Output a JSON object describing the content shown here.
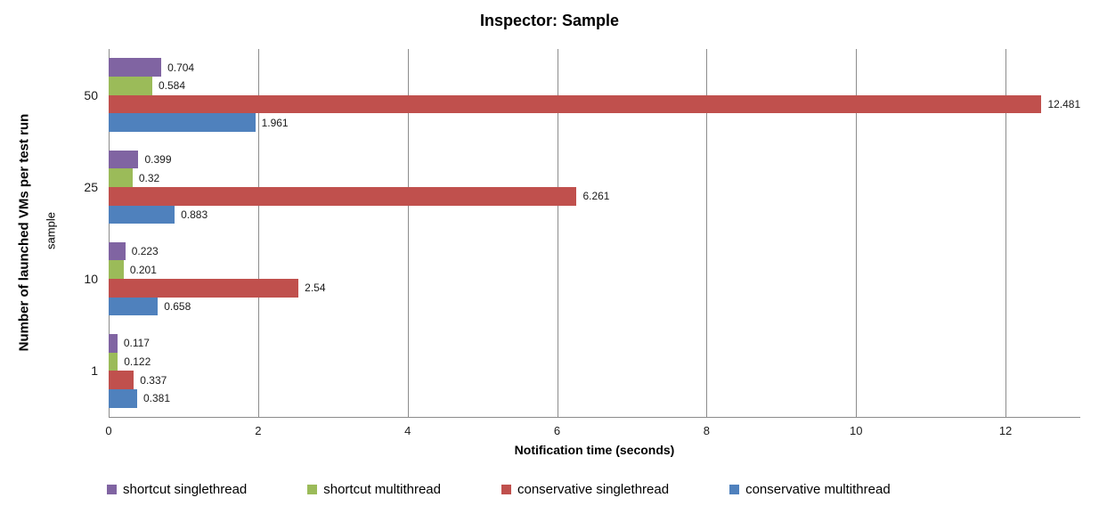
{
  "title": "Inspector: Sample",
  "chart_data": {
    "type": "bar",
    "orientation": "horizontal",
    "title": "Inspector: Sample",
    "xlabel": "Notification time (seconds)",
    "ylabel": "Number of launched VMs per test run",
    "ylabel_secondary": "sample",
    "categories": [
      "50",
      "25",
      "10",
      "1"
    ],
    "series": [
      {
        "name": "shortcut singlethread",
        "color": "#8064A2",
        "values": [
          0.704,
          0.399,
          0.223,
          0.117
        ],
        "labels": [
          "0.704",
          "0.399",
          "0.223",
          "0.117"
        ]
      },
      {
        "name": "shortcut multithread",
        "color": "#9BBB59",
        "values": [
          0.584,
          0.32,
          0.201,
          0.122
        ],
        "labels": [
          "0.584",
          "0.32",
          "0.201",
          "0.122"
        ]
      },
      {
        "name": "conservative singlethread",
        "color": "#C0504D",
        "values": [
          12.481,
          6.261,
          2.54,
          0.337
        ],
        "labels": [
          "12.481",
          "6.261",
          "2.54",
          "0.337"
        ]
      },
      {
        "name": "conservative multithread",
        "color": "#4F81BD",
        "values": [
          1.961,
          0.883,
          0.658,
          0.381
        ],
        "labels": [
          "1.961",
          "0.883",
          "0.658",
          "0.381"
        ]
      }
    ],
    "xlim": [
      0,
      13
    ],
    "xticks": [
      0,
      2,
      4,
      6,
      8,
      10,
      12
    ],
    "grid": true,
    "gridline_color": "#8c8c8c",
    "legend_position": "bottom",
    "background_color": "#ffffff"
  }
}
